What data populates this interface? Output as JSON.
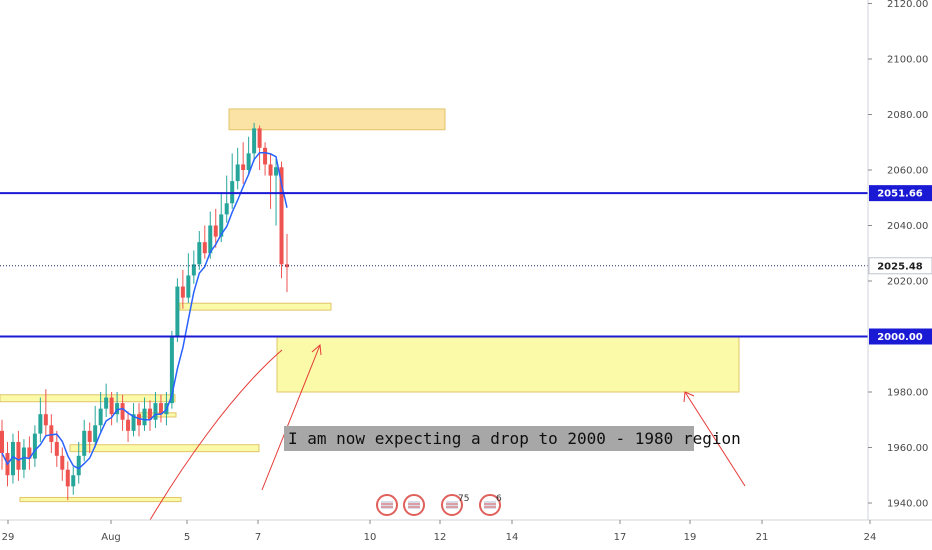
{
  "chart_data": {
    "type": "candlestick",
    "x_tick_labels": [
      "29",
      "Aug",
      "5",
      "7",
      "10",
      "12",
      "14",
      "17",
      "19",
      "21",
      "24"
    ],
    "y_tick_labels": [
      "2120.00",
      "2100.00",
      "2080.00",
      "2060.00",
      "2040.00",
      "2020.00",
      "1980.00",
      "1960.00",
      "1940.00"
    ],
    "ylim": [
      1936,
      2123
    ],
    "levels": [
      {
        "label": "2051.66",
        "value": 2051.66,
        "color": "#1a1ad4"
      },
      {
        "label": "2000.00",
        "value": 2000.0,
        "color": "#1a1ad4"
      }
    ],
    "current_price": {
      "label": "2025.48",
      "value": 2025.48,
      "color": "#1a2a6c"
    },
    "zones": [
      {
        "y_top": 2082,
        "y_bottom": 2074.5,
        "color": "#fbe3a6"
      },
      {
        "y_top": 2000,
        "y_bottom": 1980,
        "color": "#fbfaa8"
      },
      {
        "y_top": 2012,
        "y_bottom": 2009.5,
        "color": "#fbfaa8"
      },
      {
        "y_top": 1961,
        "y_bottom": 1958.5,
        "color": "#fbfaa8"
      },
      {
        "y_top": 1942,
        "y_bottom": 1940.5,
        "color": "#fbfaa8"
      },
      {
        "y_top": 1979,
        "y_bottom": 1976.5,
        "color": "#fbfaa8"
      },
      {
        "y_top": 1972.5,
        "y_bottom": 1971,
        "color": "#fbfaa8"
      }
    ],
    "annotation": "I am now expecting a drop to 2000 - 1980 region",
    "event_icons": [
      "",
      "",
      "75",
      "6"
    ],
    "colors": {
      "up": "#26a69a",
      "down": "#ef5350",
      "ma": "#2962ff",
      "arrow": "#e53935",
      "level": "#1a1ad4"
    }
  }
}
